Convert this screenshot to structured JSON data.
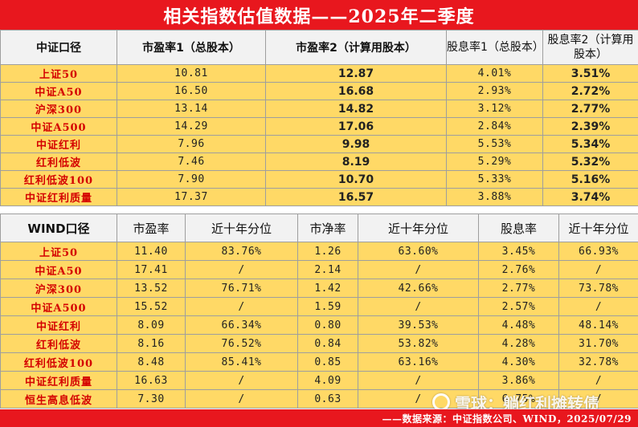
{
  "title": "相关指数估值数据——2025年二季度",
  "section1": {
    "headers": {
      "c0": "中证口径",
      "c1": "市盈率1（总股本）",
      "c2": "市盈率2（计算用股本）",
      "c3": "股息率1（总股本）",
      "c4": "股息率2（计算用股本）"
    },
    "rows": [
      {
        "name": "上证50",
        "pe1": "10.81",
        "pe2": "12.87",
        "dy1": "4.01%",
        "dy2": "3.51%"
      },
      {
        "name": "中证A50",
        "pe1": "16.50",
        "pe2": "16.68",
        "dy1": "2.93%",
        "dy2": "2.72%"
      },
      {
        "name": "沪深300",
        "pe1": "13.14",
        "pe2": "14.82",
        "dy1": "3.12%",
        "dy2": "2.77%"
      },
      {
        "name": "中证A500",
        "pe1": "14.29",
        "pe2": "17.06",
        "dy1": "2.84%",
        "dy2": "2.39%"
      },
      {
        "name": "中证红利",
        "pe1": "7.96",
        "pe2": "9.98",
        "dy1": "5.53%",
        "dy2": "5.34%"
      },
      {
        "name": "红利低波",
        "pe1": "7.46",
        "pe2": "8.19",
        "dy1": "5.29%",
        "dy2": "5.32%"
      },
      {
        "name": "红利低波100",
        "pe1": "7.90",
        "pe2": "10.70",
        "dy1": "5.33%",
        "dy2": "5.16%"
      },
      {
        "name": "中证红利质量",
        "pe1": "17.37",
        "pe2": "16.57",
        "dy1": "3.88%",
        "dy2": "3.74%"
      }
    ]
  },
  "section2": {
    "headers": {
      "c0": "WIND口径",
      "c1": "市盈率",
      "c2": "近十年分位",
      "c3": "市净率",
      "c4": "近十年分位",
      "c5": "股息率",
      "c6": "近十年分位"
    },
    "rows": [
      {
        "name": "上证50",
        "pe": "11.40",
        "pe_pct": "83.76%",
        "pb": "1.26",
        "pb_pct": "63.60%",
        "dy": "3.45%",
        "dy_pct": "66.93%"
      },
      {
        "name": "中证A50",
        "pe": "17.41",
        "pe_pct": "/",
        "pb": "2.14",
        "pb_pct": "/",
        "dy": "2.76%",
        "dy_pct": "/"
      },
      {
        "name": "沪深300",
        "pe": "13.52",
        "pe_pct": "76.71%",
        "pb": "1.42",
        "pb_pct": "42.66%",
        "dy": "2.77%",
        "dy_pct": "73.78%"
      },
      {
        "name": "中证A500",
        "pe": "15.52",
        "pe_pct": "/",
        "pb": "1.59",
        "pb_pct": "/",
        "dy": "2.57%",
        "dy_pct": "/"
      },
      {
        "name": "中证红利",
        "pe": "8.09",
        "pe_pct": "66.34%",
        "pb": "0.80",
        "pb_pct": "39.53%",
        "dy": "4.48%",
        "dy_pct": "48.14%"
      },
      {
        "name": "红利低波",
        "pe": "8.16",
        "pe_pct": "76.52%",
        "pb": "0.84",
        "pb_pct": "53.82%",
        "dy": "4.28%",
        "dy_pct": "31.70%"
      },
      {
        "name": "红利低波100",
        "pe": "8.48",
        "pe_pct": "85.41%",
        "pb": "0.85",
        "pb_pct": "63.16%",
        "dy": "4.30%",
        "dy_pct": "32.78%"
      },
      {
        "name": "中证红利质量",
        "pe": "16.63",
        "pe_pct": "/",
        "pb": "4.09",
        "pb_pct": "/",
        "dy": "3.86%",
        "dy_pct": "/"
      },
      {
        "name": "恒生高息低波",
        "pe": "7.30",
        "pe_pct": "/",
        "pb": "0.63",
        "pb_pct": "/",
        "dy": "6.75%",
        "dy_pct": "/"
      }
    ]
  },
  "footer": "——数据来源：中证指数公司、WIND，2025/07/29",
  "watermark": "雪球：躺红利摊转债",
  "colors": {
    "title_red": "#e8171e",
    "row_yellow": "#ffd966",
    "header_gray": "#f2f2f2",
    "name_red": "#d40000"
  }
}
